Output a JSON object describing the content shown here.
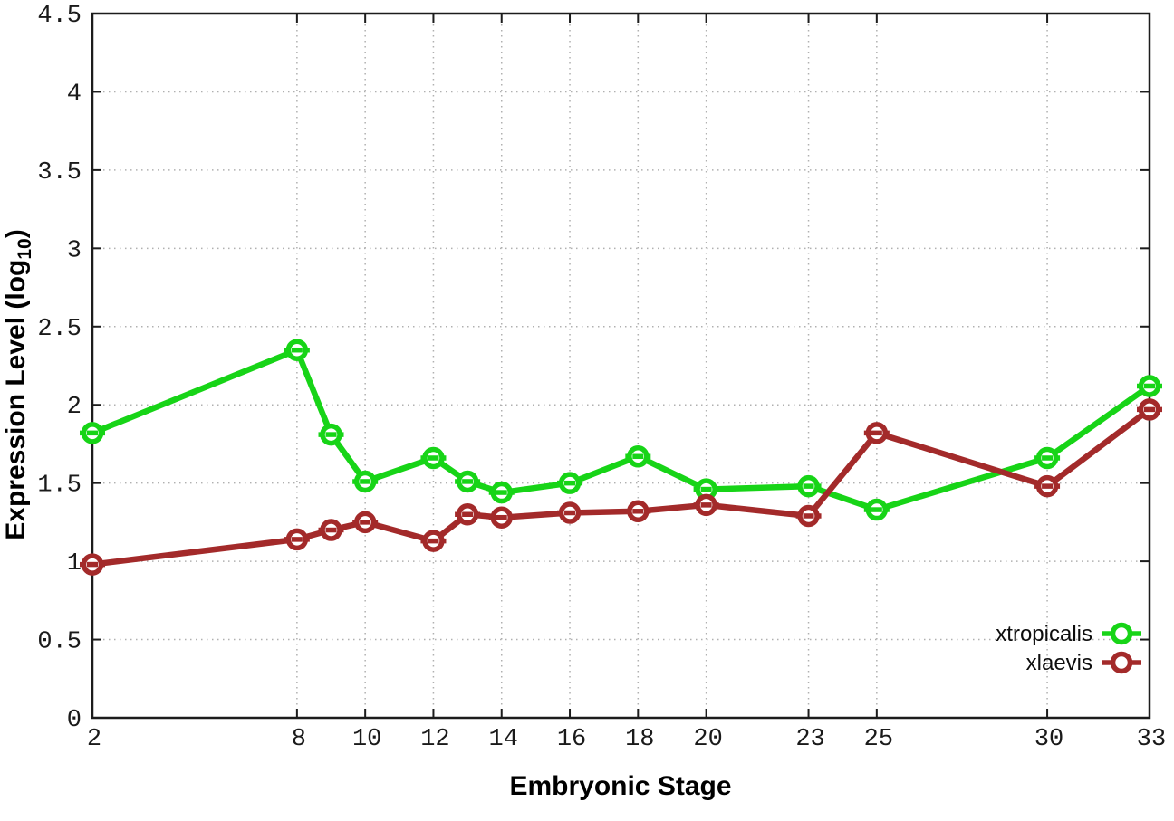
{
  "chart_data": {
    "type": "line",
    "title": "",
    "xlabel": "Embryonic Stage",
    "ylabel": "Expression Level (log10)",
    "ylabel_parts": {
      "main": "Expression Level (log",
      "sub": "10",
      "end": ")"
    },
    "x": [
      2,
      8,
      9,
      10,
      12,
      13,
      14,
      16,
      18,
      20,
      23,
      25,
      30,
      33
    ],
    "xticks": [
      2,
      8,
      10,
      12,
      14,
      16,
      18,
      20,
      23,
      25,
      30,
      33
    ],
    "xtick_labels": [
      "2",
      "8",
      "10",
      "12",
      "14",
      "16",
      "18",
      "20",
      "23",
      "25",
      "30",
      "33"
    ],
    "yticks": [
      0,
      0.5,
      1,
      1.5,
      2,
      2.5,
      3,
      3.5,
      4,
      4.5
    ],
    "ytick_labels": [
      "0",
      "0.5",
      "1",
      "1.5",
      "2",
      "2.5",
      "3",
      "3.5",
      "4",
      "4.5"
    ],
    "xlim": [
      2,
      33
    ],
    "ylim": [
      0,
      4.5
    ],
    "grid": true,
    "legend_position": "bottom-right-inside",
    "series": [
      {
        "name": "xtropicalis",
        "color": "#17d417",
        "values": [
          1.82,
          2.35,
          1.81,
          1.51,
          1.66,
          1.51,
          1.44,
          1.5,
          1.67,
          1.46,
          1.48,
          1.33,
          1.66,
          2.12
        ]
      },
      {
        "name": "xlaevis",
        "color": "#a32a2a",
        "values": [
          0.98,
          1.14,
          1.2,
          1.25,
          1.13,
          1.3,
          1.28,
          1.31,
          1.32,
          1.36,
          1.29,
          1.82,
          1.48,
          1.97
        ]
      }
    ],
    "style": {
      "background": "#ffffff",
      "border_color": "#1c1c1c",
      "grid_color": "#b0b0b0",
      "tick_label_color": "#1a1a1a",
      "line_width": 6.5,
      "marker": "open-circle-with-bar"
    }
  }
}
